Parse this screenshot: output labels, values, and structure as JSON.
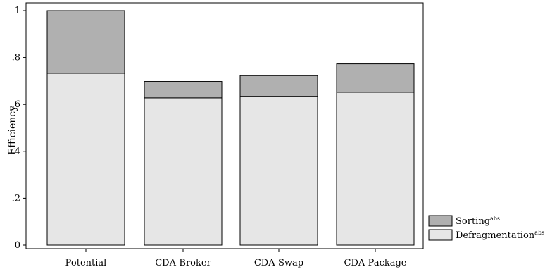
{
  "chart_data": {
    "type": "bar",
    "stacked": true,
    "categories": [
      "Potential",
      "CDA-Broker",
      "CDA-Swap",
      "CDA-Package"
    ],
    "series": [
      {
        "name": "Defragmentation",
        "name_superscript": "abs",
        "color": "#e6e6e6",
        "values": [
          0.733,
          0.628,
          0.633,
          0.652
        ]
      },
      {
        "name": "Sorting",
        "name_superscript": "abs",
        "color": "#b0b0b0",
        "values": [
          0.267,
          0.07,
          0.09,
          0.121
        ]
      }
    ],
    "ylabel": "Efficiency",
    "xlabel": "",
    "ylim": [
      0,
      1
    ],
    "yticks": [
      {
        "value": 0,
        "label": "0"
      },
      {
        "value": 0.2,
        "label": ".2"
      },
      {
        "value": 0.4,
        "label": ".4"
      },
      {
        "value": 0.6,
        "label": ".6"
      },
      {
        "value": 0.8,
        "label": ".8"
      },
      {
        "value": 1,
        "label": "1"
      }
    ],
    "grid": false,
    "legend_position": "bottom-right"
  }
}
